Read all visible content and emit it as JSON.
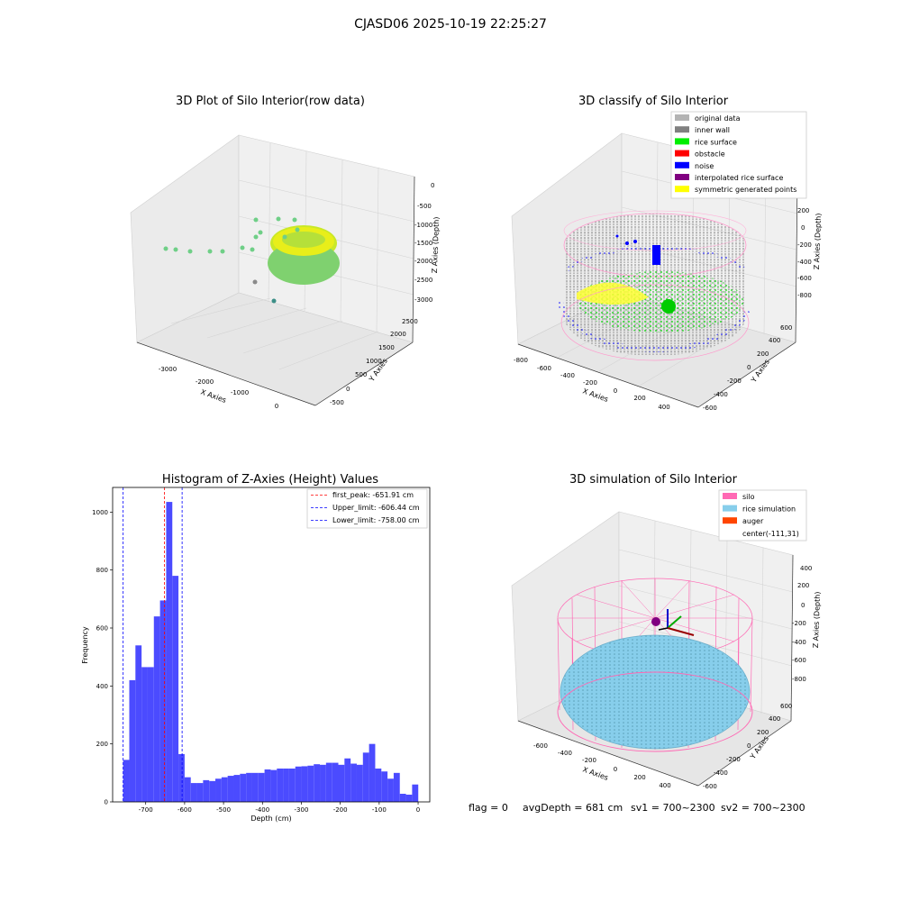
{
  "figure": {
    "title": "CJASD06 2025-10-19 22:25:27",
    "footer": {
      "flag": "flag = 0",
      "avg_depth": "avgDepth = 681 cm",
      "sv1": "sv1 = 700~2300",
      "sv2": "sv2 = 700~2300"
    }
  },
  "colors": {
    "raw_points": "#7fd16f",
    "raw_yellow": "#e8ee1a",
    "original": "#b3b3b3",
    "inner_wall": "#808080",
    "rice_surface": "#00ee00",
    "obstacle": "#ff0000",
    "noise": "#0000ff",
    "interpolated": "#800080",
    "symmetric": "#ffff00",
    "silo": "#ff69b4",
    "rice_sim": "#87ceeb",
    "auger": "#ff4500",
    "hist_bar": "#4b4bff"
  },
  "chart_data": [
    {
      "type": "scatter",
      "title": "3D Plot of Silo Interior(row data)",
      "xlabel": "X Axies",
      "ylabel": "Y Axies",
      "zlabel": "Z Axies (Depth)",
      "x_ticks": [
        "-3000",
        "-2000",
        "-1000",
        "0"
      ],
      "y_ticks": [
        "-500",
        "0",
        "500",
        "1000",
        "1500",
        "2000",
        "2500"
      ],
      "z_ticks": [
        "0",
        "-500",
        "-1000",
        "-1500",
        "-2000",
        "-2500",
        "-3000"
      ]
    },
    {
      "type": "scatter",
      "title": "3D classify of Silo Interior",
      "xlabel": "X Axies",
      "ylabel": "Y Axies",
      "zlabel": "Z Axies (Depth)",
      "x_ticks": [
        "-800",
        "-600",
        "-400",
        "-200",
        "0",
        "200",
        "400"
      ],
      "y_ticks": [
        "-600",
        "-400",
        "-200",
        "0",
        "200",
        "400",
        "600"
      ],
      "z_ticks": [
        "200",
        "0",
        "-200",
        "-400",
        "-600",
        "-800"
      ],
      "legend": [
        {
          "label": "original data",
          "color": "#b3b3b3"
        },
        {
          "label": "inner wall",
          "color": "#808080"
        },
        {
          "label": "rice surface",
          "color": "#00ee00"
        },
        {
          "label": "obstacle",
          "color": "#ff0000"
        },
        {
          "label": "noise",
          "color": "#0000ff"
        },
        {
          "label": "interpolated rice surface",
          "color": "#800080"
        },
        {
          "label": "symmetric generated points",
          "color": "#ffff00"
        }
      ]
    },
    {
      "type": "bar",
      "title": "Histogram of Z-Axies (Height) Values",
      "xlabel": "Depth (cm)",
      "ylabel": "Frequency",
      "xlim": [
        -785,
        30
      ],
      "ylim": [
        0,
        1085
      ],
      "x_ticks": [
        -700,
        -600,
        -500,
        -400,
        -300,
        -200,
        -100,
        0
      ],
      "y_ticks": [
        0,
        200,
        400,
        600,
        800,
        1000
      ],
      "bin_start": -758,
      "bin_width": 15.8,
      "values": [
        145,
        420,
        540,
        465,
        465,
        640,
        695,
        1035,
        780,
        165,
        85,
        65,
        65,
        75,
        72,
        80,
        85,
        90,
        93,
        97,
        100,
        100,
        100,
        112,
        110,
        115,
        115,
        115,
        122,
        123,
        125,
        130,
        128,
        135,
        135,
        128,
        150,
        132,
        128,
        170,
        200,
        115,
        105,
        80,
        100,
        28,
        25,
        60
      ],
      "lines": [
        {
          "label": "first_peak: -651.91 cm",
          "x": -651.91,
          "color": "#ff0000"
        },
        {
          "label": "Upper_limit: -606.44 cm",
          "x": -606.44,
          "color": "#0000ff"
        },
        {
          "label": "Lower_limit: -758.00 cm",
          "x": -758.0,
          "color": "#0000ff"
        }
      ]
    },
    {
      "type": "scatter",
      "title": "3D simulation of Silo Interior",
      "xlabel": "X Axies",
      "ylabel": "Y Axies",
      "zlabel": "Z Axies (Depth)",
      "x_ticks": [
        "-600",
        "-400",
        "-200",
        "0",
        "200",
        "400"
      ],
      "y_ticks": [
        "-600",
        "-400",
        "-200",
        "0",
        "200",
        "400",
        "600"
      ],
      "z_ticks": [
        "400",
        "200",
        "0",
        "-200",
        "-400",
        "-600",
        "-800"
      ],
      "legend": [
        {
          "label": "silo",
          "color": "#ff69b4"
        },
        {
          "label": "rice simulation",
          "color": "#87ceeb"
        },
        {
          "label": "auger",
          "color": "#ff4500"
        },
        {
          "label": "center(-111,31)",
          "color": ""
        }
      ]
    }
  ]
}
